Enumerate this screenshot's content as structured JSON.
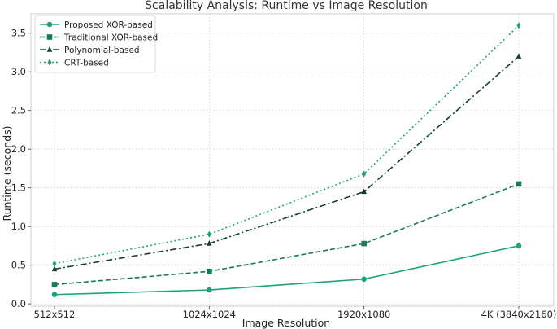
{
  "chart_data": {
    "type": "line",
    "title": "Scalability Analysis: Runtime vs Image Resolution",
    "xlabel": "Image Resolution",
    "ylabel": "Runtime (seconds)",
    "categories": [
      "512x512",
      "1024x1024",
      "1920x1080",
      "4K (3840x2160)"
    ],
    "ylim": [
      -0.03,
      3.75
    ],
    "yticks": [
      0.0,
      0.5,
      1.0,
      1.5,
      2.0,
      2.5,
      3.0,
      3.5
    ],
    "ytick_labels": [
      "0.0",
      "0.5",
      "1.0",
      "1.5",
      "2.0",
      "2.5",
      "3.0",
      "3.5"
    ],
    "grid": true,
    "legend_position": "top-left",
    "series": [
      {
        "name": "Proposed XOR-based",
        "values": [
          0.12,
          0.18,
          0.32,
          0.75
        ],
        "color": "#1aa37a",
        "line": "solid",
        "marker": "circle"
      },
      {
        "name": "Traditional XOR-based",
        "values": [
          0.25,
          0.42,
          0.78,
          1.55
        ],
        "color": "#167a5c",
        "line": "dashed",
        "marker": "square"
      },
      {
        "name": "Polynomial-based",
        "values": [
          0.45,
          0.78,
          1.45,
          3.2
        ],
        "color": "#123f33",
        "line": "dashdot",
        "marker": "triangle"
      },
      {
        "name": "CRT-based",
        "values": [
          0.52,
          0.9,
          1.68,
          3.6
        ],
        "color": "#1aa37a",
        "line": "dotted",
        "marker": "diamond"
      }
    ]
  }
}
